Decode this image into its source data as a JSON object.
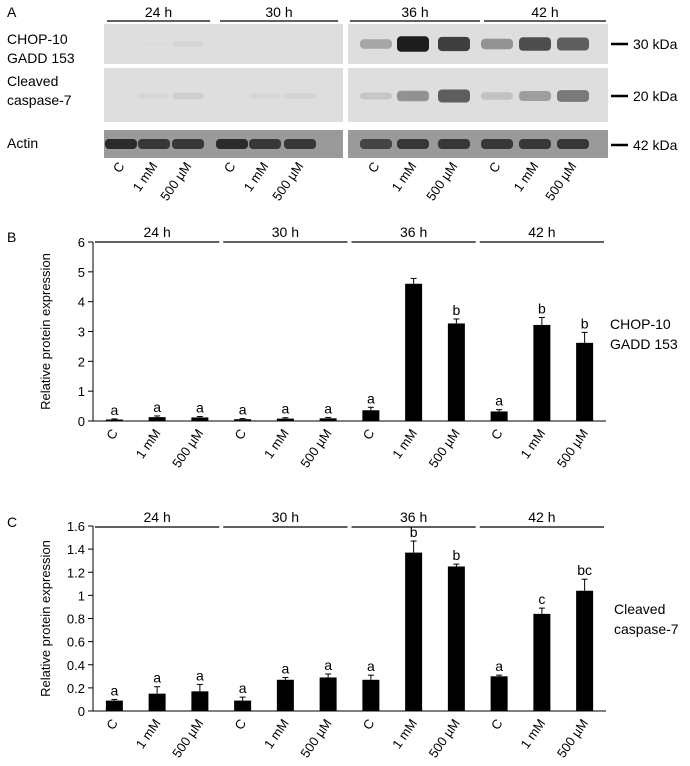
{
  "panel_a": {
    "letter": "A",
    "time_groups": [
      "24 h",
      "30 h",
      "36 h",
      "42 h"
    ],
    "rows": [
      {
        "label_lines": [
          "CHOP-10",
          "GADD 153"
        ],
        "marker": "30 kDa",
        "intensity": [
          0.02,
          0.04,
          0.12,
          0.01,
          0.03,
          0.03,
          0.45,
          0.95,
          0.85,
          0.55,
          0.8,
          0.75
        ]
      },
      {
        "label_lines": [
          "Cleaved",
          "caspase-7"
        ],
        "marker": "20 kDa",
        "intensity": [
          0.02,
          0.12,
          0.2,
          0.02,
          0.12,
          0.15,
          0.25,
          0.55,
          0.75,
          0.3,
          0.5,
          0.65
        ]
      },
      {
        "label_lines": [
          "Actin"
        ],
        "marker": "42 kDa",
        "intensity": [
          0.9,
          0.85,
          0.85,
          0.9,
          0.85,
          0.85,
          0.8,
          0.85,
          0.85,
          0.85,
          0.85,
          0.85
        ]
      }
    ],
    "lanes": [
      "C",
      "1 mM",
      "500 µM",
      "C",
      "1 mM",
      "500 µM",
      "C",
      "1 mM",
      "500 µM",
      "C",
      "1 mM",
      "500 µM"
    ]
  },
  "chart_data": [
    {
      "type": "bar",
      "panel": "B",
      "ylabel": "Relative protein expression",
      "ylim": [
        0,
        6
      ],
      "yticks": [
        0,
        1,
        2,
        3,
        4,
        5,
        6
      ],
      "group_labels": [
        "24 h",
        "30 h",
        "36 h",
        "42 h"
      ],
      "categories": [
        "C",
        "1 mM",
        "500 µM",
        "C",
        "1 mM",
        "500 µM",
        "C",
        "1 mM",
        "500 µM",
        "C",
        "1 mM",
        "500 µM"
      ],
      "values": [
        0.05,
        0.13,
        0.12,
        0.06,
        0.08,
        0.09,
        0.36,
        4.6,
        3.27,
        0.32,
        3.22,
        2.62
      ],
      "errors": [
        0.02,
        0.04,
        0.03,
        0.02,
        0.03,
        0.03,
        0.1,
        0.18,
        0.15,
        0.06,
        0.25,
        0.35
      ],
      "letters": [
        "a",
        "a",
        "a",
        "a",
        "a",
        "a",
        "a",
        "",
        "b",
        "a",
        "b",
        "b"
      ],
      "side_label_lines": [
        "CHOP-10",
        "GADD 153"
      ]
    },
    {
      "type": "bar",
      "panel": "C",
      "ylabel": "Relative protein expression",
      "ylim": [
        0,
        1.6
      ],
      "yticks": [
        0,
        0.2,
        0.4,
        0.6,
        0.8,
        1,
        1.2,
        1.4,
        1.6
      ],
      "group_labels": [
        "24 h",
        "30 h",
        "36 h",
        "42 h"
      ],
      "categories": [
        "C",
        "1 mM",
        "500 µM",
        "C",
        "1 mM",
        "500 µM",
        "C",
        "1 mM",
        "500 µM",
        "C",
        "1 mM",
        "500 µM"
      ],
      "values": [
        0.09,
        0.15,
        0.17,
        0.09,
        0.27,
        0.29,
        0.27,
        1.37,
        1.25,
        0.3,
        0.84,
        1.04
      ],
      "errors": [
        0.01,
        0.06,
        0.06,
        0.03,
        0.02,
        0.03,
        0.04,
        0.1,
        0.02,
        0.01,
        0.05,
        0.1
      ],
      "letters": [
        "a",
        "a",
        "a",
        "a",
        "a",
        "a",
        "a",
        "b",
        "b",
        "a",
        "c",
        "bc"
      ],
      "side_label_lines": [
        "Cleaved",
        "caspase-7"
      ]
    }
  ]
}
